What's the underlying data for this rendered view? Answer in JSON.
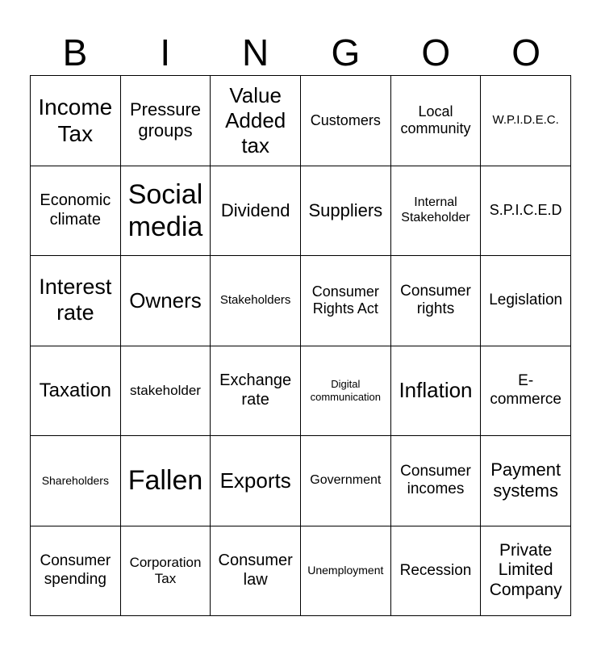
{
  "header": [
    "B",
    "I",
    "N",
    "G",
    "O",
    "O"
  ],
  "cells": [
    [
      "Income Tax",
      "Pressure groups",
      "Value Added tax",
      "Customers",
      "Local community",
      "W.P.I.D.E.C."
    ],
    [
      "Economic climate",
      "Social media",
      "Dividend",
      "Suppliers",
      "Internal Stakeholder",
      "S.P.I.C.E.D"
    ],
    [
      "Interest rate",
      "Owners",
      "Stakeholders",
      "Consumer Rights Act",
      "Consumer rights",
      "Legislation"
    ],
    [
      "Taxation",
      "stakeholder",
      "Exchange rate",
      "Digital communication",
      "Inflation",
      "E-commerce"
    ],
    [
      "Shareholders",
      "Fallen",
      "Exports",
      "Government",
      "Consumer incomes",
      "Payment systems"
    ],
    [
      "Consumer spending",
      "Corporation Tax",
      "Consumer law",
      "Unemployment",
      "Recession",
      "Private Limited Company"
    ]
  ]
}
